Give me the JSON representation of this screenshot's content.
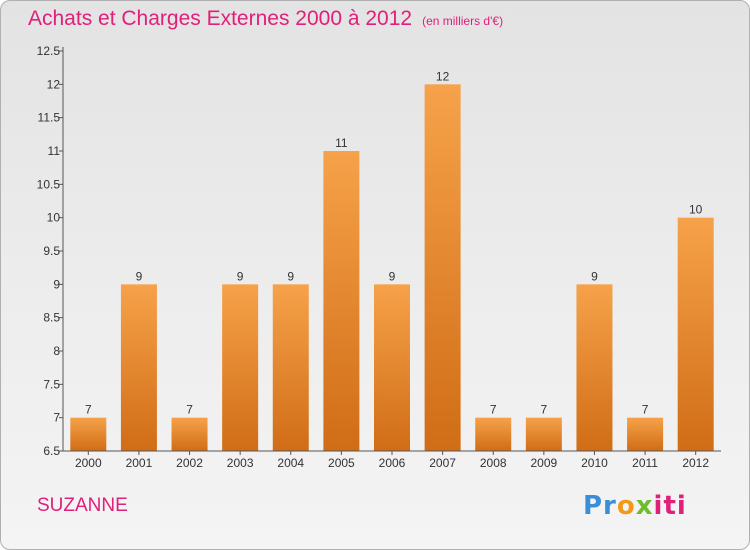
{
  "title": "Achats et Charges Externes 2000 à 2012",
  "unit_label": "(en milliers d'€)",
  "commune": "SUZANNE",
  "logo": {
    "part1": "Pr",
    "part2": "o",
    "part3": "x",
    "part4": "iti"
  },
  "colors": {
    "bar_top": "#f6a24a",
    "bar_bottom": "#d06d16",
    "title": "#e0207a",
    "axis": "#555555"
  },
  "chart_data": {
    "type": "bar",
    "title": "Achats et Charges Externes 2000 à 2012",
    "categories": [
      "2000",
      "2001",
      "2002",
      "2003",
      "2004",
      "2005",
      "2006",
      "2007",
      "2008",
      "2009",
      "2010",
      "2011",
      "2012"
    ],
    "values": [
      7,
      9,
      7,
      9,
      9,
      11,
      9,
      12,
      7,
      7,
      9,
      7,
      10
    ],
    "data_labels": [
      "7",
      "9",
      "7",
      "9",
      "9",
      "11",
      "9",
      "12",
      "7",
      "7",
      "9",
      "7",
      "10"
    ],
    "yticks": [
      "6.5",
      "7",
      "7.5",
      "8",
      "8.5",
      "9",
      "9.5",
      "10",
      "10.5",
      "11",
      "11.5",
      "12",
      "12.5"
    ],
    "ylim": [
      6.5,
      12.5
    ],
    "xlabel": "",
    "ylabel": "",
    "grid": false
  }
}
